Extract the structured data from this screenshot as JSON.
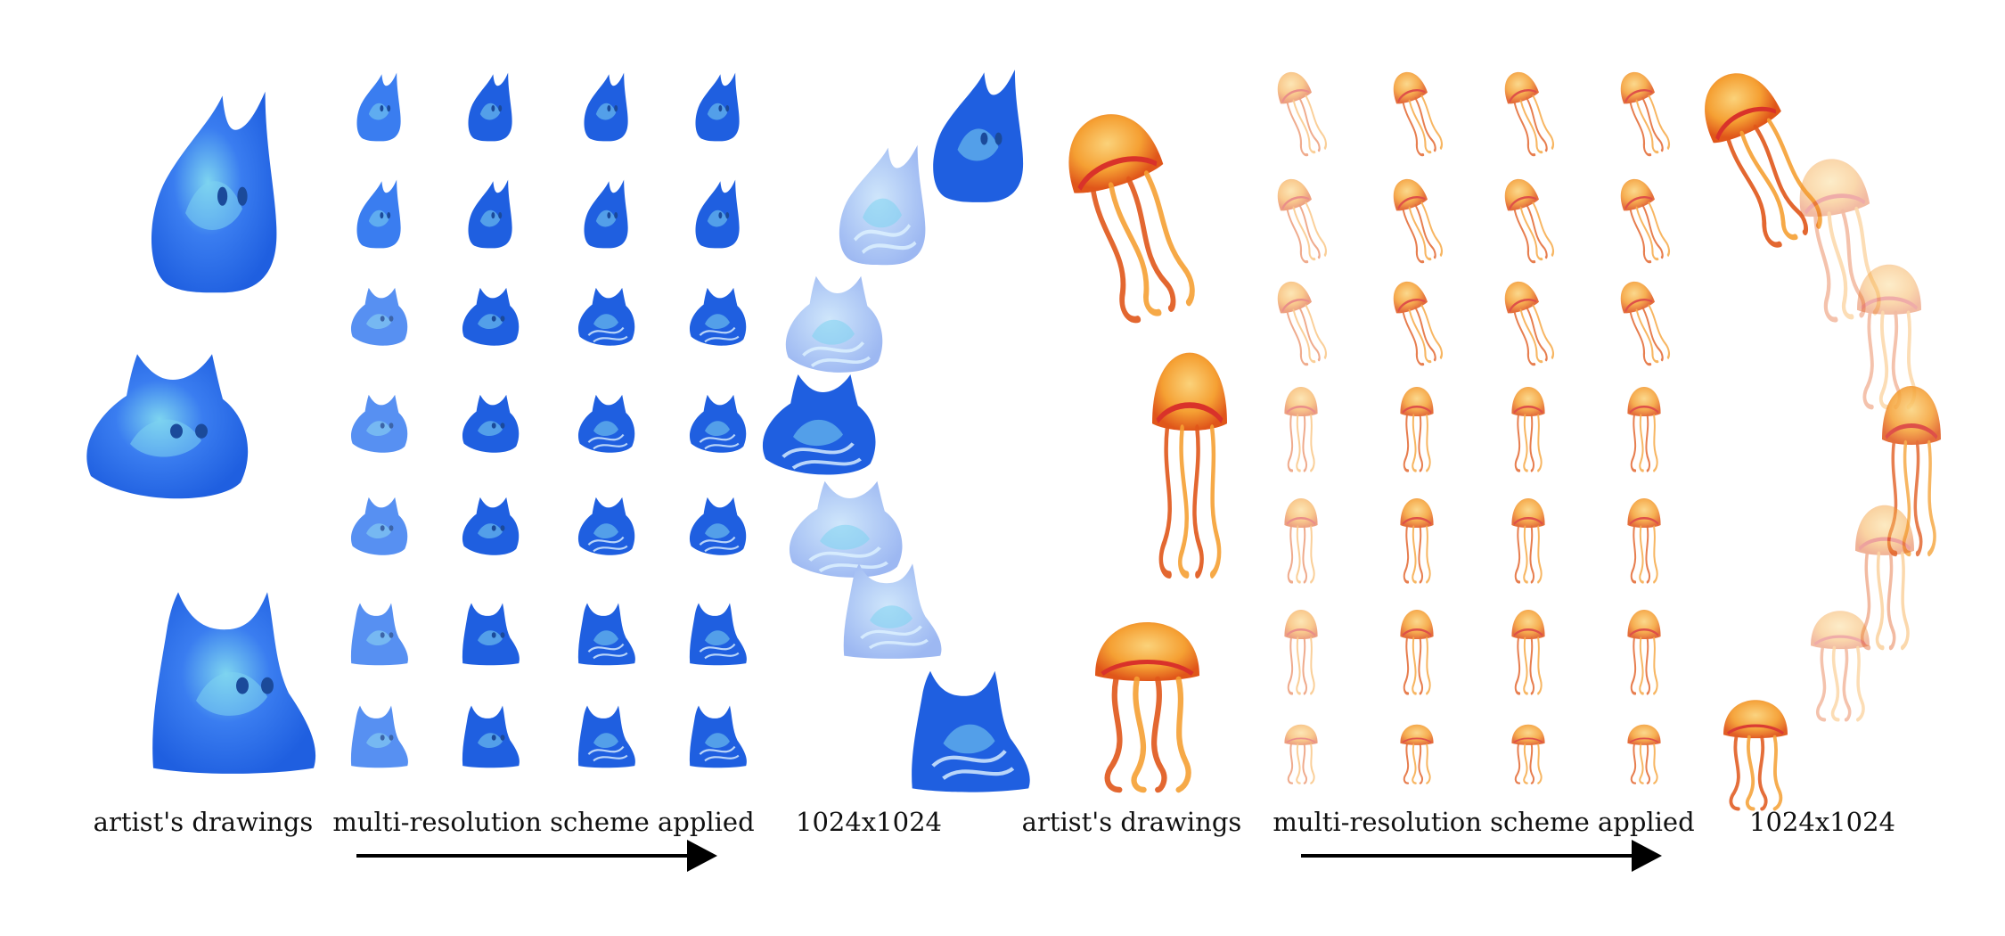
{
  "figure": {
    "panels": [
      {
        "id": "slime",
        "palette": {
          "dark": "#1f5fe0",
          "mid": "#3a7df0",
          "light": "#7dd4f0",
          "pale": "#a8c4f5",
          "eye": "#1b4a9a"
        },
        "label_drawings": "artist's drawings",
        "label_scheme": "multi-resolution scheme applied",
        "label_result": "1024x1024"
      },
      {
        "id": "jellyfish",
        "palette": {
          "dark": "#e0561a",
          "mid": "#f5a033",
          "light": "#fbd27a",
          "pale": "#f8d9a8",
          "accent": "#d9322a"
        },
        "label_drawings": "artist's drawings",
        "label_scheme": "multi-resolution scheme applied",
        "label_result": "1024x1024"
      }
    ]
  }
}
